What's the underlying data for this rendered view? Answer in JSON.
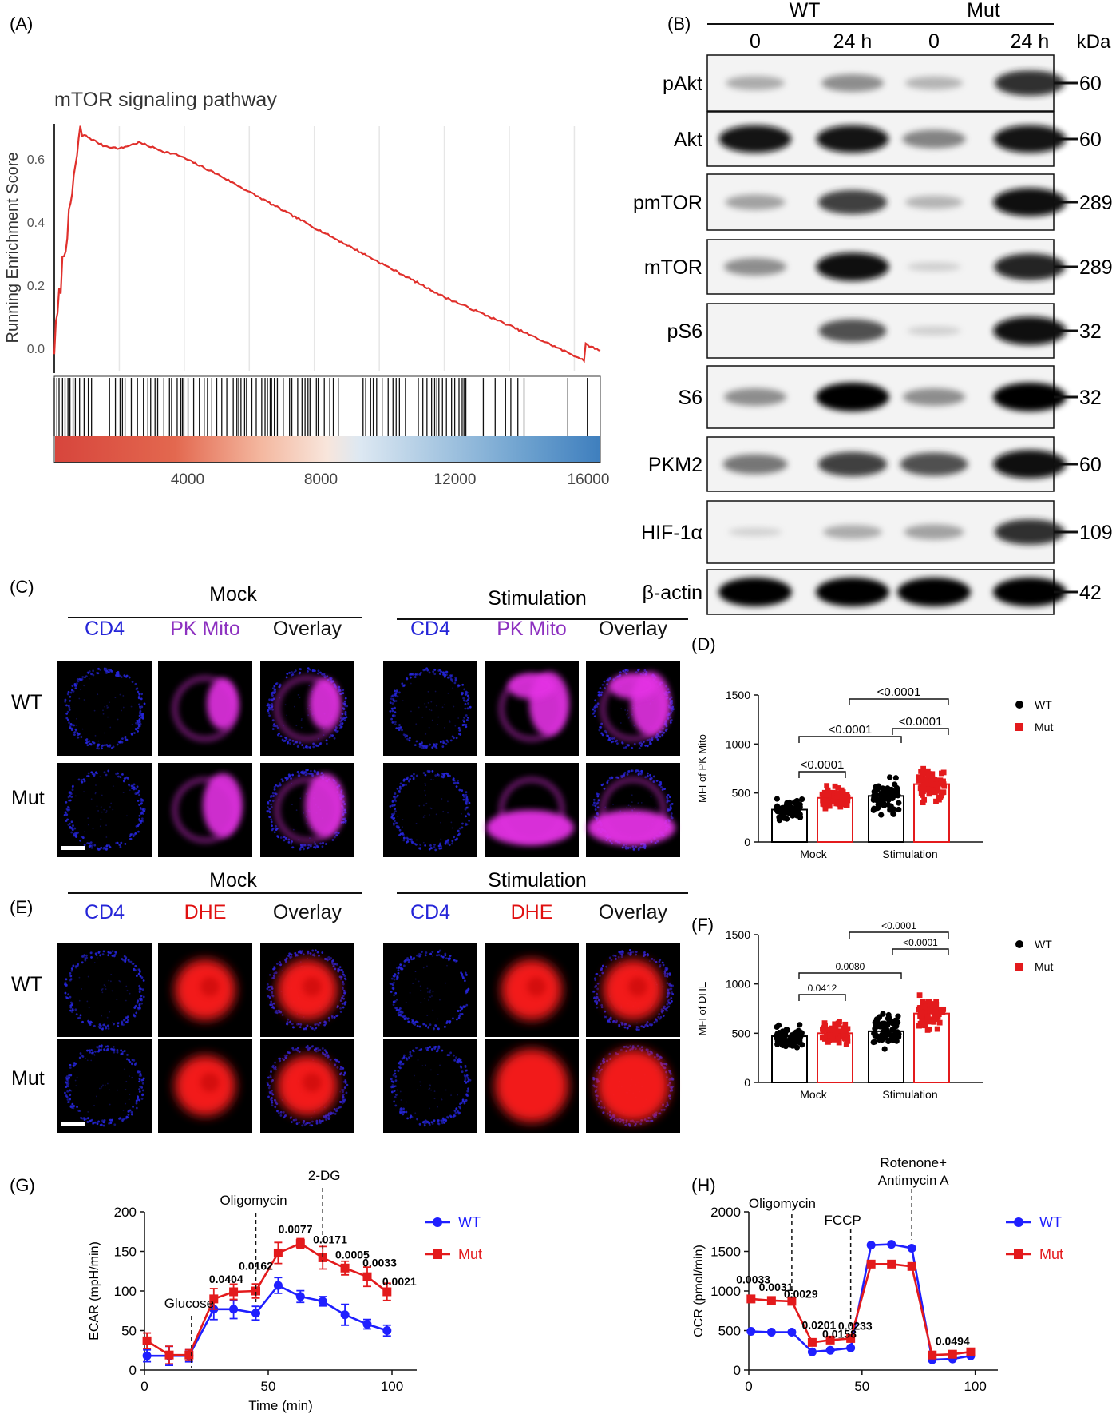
{
  "panel_labels": [
    "(A)",
    "(B)",
    "(C)",
    "(D)",
    "(E)",
    "(F)",
    "(G)",
    "(H)"
  ],
  "panel_a": {
    "title": "mTOR signaling pathway",
    "ylabel": "Running Enrichment Score",
    "yticks": [
      "0.0",
      "0.2",
      "0.4",
      "0.6"
    ],
    "xticks": [
      "4000",
      "8000",
      "12000",
      "16000"
    ]
  },
  "panel_b": {
    "group_labels": [
      "WT",
      "Mut"
    ],
    "time_labels": [
      "0",
      "24 h",
      "0",
      "24 h"
    ],
    "kda_label": "kDa",
    "bands": [
      {
        "name": "pAkt",
        "kda": "60",
        "intensity": [
          0.35,
          0.5,
          0.3,
          0.85
        ]
      },
      {
        "name": "Akt",
        "kda": "60",
        "intensity": [
          0.95,
          0.95,
          0.55,
          0.95
        ]
      },
      {
        "name": "pmTOR",
        "kda": "289",
        "intensity": [
          0.4,
          0.8,
          0.3,
          0.98
        ]
      },
      {
        "name": "mTOR",
        "kda": "289",
        "intensity": [
          0.5,
          0.98,
          0.12,
          0.9
        ]
      },
      {
        "name": "pS6",
        "kda": "32",
        "intensity": [
          0.02,
          0.75,
          0.12,
          0.98
        ]
      },
      {
        "name": "S6",
        "kda": "32",
        "intensity": [
          0.5,
          1.0,
          0.5,
          1.0
        ]
      },
      {
        "name": "PKM2",
        "kda": "60",
        "intensity": [
          0.6,
          0.8,
          0.75,
          0.98
        ]
      },
      {
        "name": "HIF-1α",
        "kda": "109",
        "intensity": [
          0.1,
          0.35,
          0.4,
          0.85
        ]
      },
      {
        "name": "β-actin",
        "kda": "42",
        "intensity": [
          1.0,
          1.0,
          1.0,
          1.0
        ]
      }
    ]
  },
  "panel_c": {
    "groups": [
      "Mock",
      "Stimulation"
    ],
    "channels": [
      "CD4",
      "PK Mito",
      "Overlay"
    ],
    "rows": [
      "WT",
      "Mut"
    ],
    "colors": {
      "cd4": "#2525d8",
      "stain": "#e433e4",
      "label_stain": "#8d31c0"
    }
  },
  "panel_e": {
    "groups": [
      "Mock",
      "Stimulation"
    ],
    "channels": [
      "CD4",
      "DHE",
      "Overlay"
    ],
    "rows": [
      "WT",
      "Mut"
    ],
    "colors": {
      "cd4": "#2525d8",
      "stain": "#ff1a1a",
      "label_stain": "#e01010"
    }
  },
  "chart_data": [
    {
      "id": "D",
      "type": "bar",
      "ylabel": "MFI of PK Mito",
      "categories": [
        "Mock",
        "Stimulation"
      ],
      "ylim": [
        0,
        1500
      ],
      "yticks": [
        "0",
        "500",
        "1000",
        "1500"
      ],
      "series": [
        {
          "name": "WT",
          "values": [
            330,
            470
          ],
          "color": "#000000"
        },
        {
          "name": "Mut",
          "values": [
            450,
            590
          ],
          "color": "#e31a1c"
        }
      ],
      "pvalues": [
        "<0.0001",
        "<0.0001",
        "<0.0001",
        "<0.0001"
      ]
    },
    {
      "id": "F",
      "type": "bar",
      "ylabel": "MFI of DHE",
      "categories": [
        "Mock",
        "Stimulation"
      ],
      "ylim": [
        0,
        1500
      ],
      "yticks": [
        "0",
        "500",
        "1000",
        "1500"
      ],
      "series": [
        {
          "name": "WT",
          "values": [
            470,
            520
          ],
          "color": "#000000"
        },
        {
          "name": "Mut",
          "values": [
            500,
            700
          ],
          "color": "#e31a1c"
        }
      ],
      "pvalues": [
        "<0.0001",
        "<0.0001",
        "0.0080",
        "0.0412"
      ]
    },
    {
      "id": "G",
      "type": "line",
      "ylabel": "ECAR (mpH/min)",
      "xlabel": "Time (min)",
      "xlim": [
        0,
        110
      ],
      "ylim": [
        0,
        200
      ],
      "xticks": [
        "0",
        "50",
        "100"
      ],
      "yticks": [
        "0",
        "50",
        "100",
        "150",
        "200"
      ],
      "x": [
        1,
        10,
        18,
        28,
        36,
        45,
        54,
        63,
        72,
        81,
        90,
        98
      ],
      "series": [
        {
          "name": "WT",
          "color": "#1f1fff",
          "values": [
            18,
            18,
            18,
            77,
            77,
            72,
            107,
            93,
            87,
            70,
            58,
            50
          ]
        },
        {
          "name": "Mut",
          "color": "#e31a1c",
          "values": [
            37,
            19,
            19,
            90,
            99,
            100,
            148,
            160,
            142,
            129,
            118,
            99
          ]
        }
      ],
      "annotations": [
        "Glucose",
        "Oligomycin",
        "2-DG"
      ],
      "pvalues": [
        "0.0404",
        "0.0162",
        "0.0077",
        "0.0171",
        "0.0005",
        "0.0033",
        "0.0021"
      ]
    },
    {
      "id": "H",
      "type": "line",
      "ylabel": "OCR (pmol/min)",
      "xlim": [
        0,
        110
      ],
      "ylim": [
        0,
        2000
      ],
      "xticks": [
        "0",
        "50",
        "100"
      ],
      "yticks": [
        "0",
        "500",
        "1000",
        "1500",
        "2000"
      ],
      "x": [
        1,
        10,
        19,
        28,
        36,
        45,
        54,
        63,
        72,
        81,
        90,
        98
      ],
      "series": [
        {
          "name": "WT",
          "color": "#1f1fff",
          "values": [
            490,
            480,
            480,
            230,
            250,
            280,
            1580,
            1590,
            1540,
            130,
            140,
            180
          ]
        },
        {
          "name": "Mut",
          "color": "#e31a1c",
          "values": [
            900,
            880,
            870,
            350,
            380,
            400,
            1340,
            1340,
            1310,
            190,
            200,
            230
          ]
        }
      ],
      "annotations": [
        "Oligomycin",
        "FCCP",
        "Rotenone+",
        "Antimycin A"
      ],
      "pvalues": [
        "0.0033",
        "0.0031",
        "0.0029",
        "0.0201",
        "0.0158",
        "0.0233",
        "0.0494"
      ]
    }
  ]
}
